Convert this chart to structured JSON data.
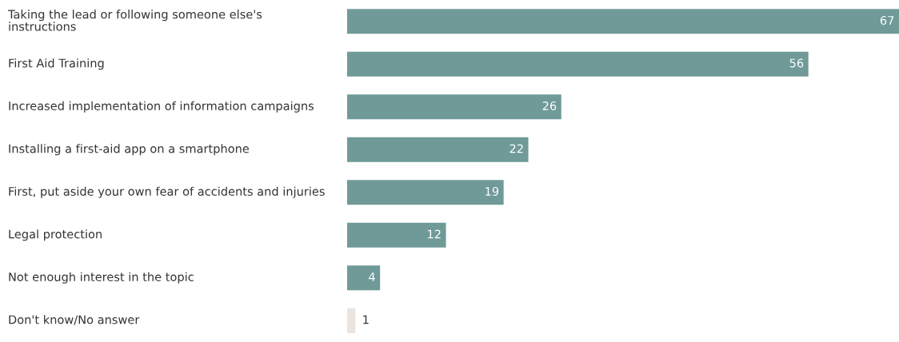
{
  "chart_data": {
    "type": "bar",
    "orientation": "horizontal",
    "data_labels": true,
    "grid": false,
    "tick_labels": "y",
    "categories": [
      "Taking the lead or following someone else's instructions",
      "First Aid Training",
      "Increased implementation of information campaigns",
      "Installing a first-aid app on a smartphone",
      "First, put aside your own fear of accidents and injuries",
      "Legal protection",
      "Not enough interest in the topic",
      "Don't know/No answer"
    ],
    "values": [
      67,
      56,
      26,
      22,
      19,
      12,
      4,
      1
    ],
    "colors": [
      "#6f9a98",
      "#6f9a98",
      "#6f9a98",
      "#6f9a98",
      "#6f9a98",
      "#6f9a98",
      "#6f9a98",
      "#ebe3de"
    ]
  }
}
